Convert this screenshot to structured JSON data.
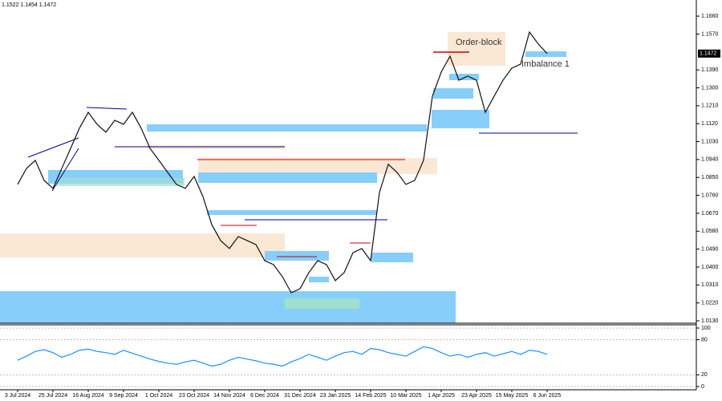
{
  "chart_data": [
    {
      "type": "line",
      "title": "1.1522 1.1454 1.1472",
      "last_price": 1.1472,
      "annotations": [
        "Order-block",
        "Imbalance 1"
      ],
      "categories": [
        "3 Jul 2024",
        null,
        null,
        null,
        "25 Jul 2024",
        null,
        null,
        null,
        "16 Aug 2024",
        null,
        null,
        null,
        "9 Sep 2024",
        null,
        null,
        null,
        "1 Oct 2024",
        null,
        null,
        null,
        "23 Oct 2024",
        null,
        null,
        null,
        "14 Nov 2024",
        null,
        null,
        null,
        "6 Dec 2024",
        null,
        null,
        null,
        "31 Dec 2024",
        null,
        null,
        null,
        "23 Jan 2025",
        null,
        null,
        null,
        "14 Feb 2025",
        null,
        null,
        null,
        "10 Mar 2025",
        null,
        null,
        null,
        "1 Apr 2025",
        null,
        null,
        null,
        "23 Apr 2025",
        null,
        null,
        null,
        "15 May 2025",
        null,
        null,
        null,
        "6 Jun 2025",
        null,
        null,
        null
      ],
      "series": [
        {
          "color": "#111111",
          "values": [
            1.0815,
            1.0895,
            1.0936,
            1.0835,
            1.0795,
            1.0895,
            1.0996,
            1.1097,
            1.1177,
            1.1117,
            1.1077,
            1.1137,
            1.1117,
            1.1177,
            1.1097,
            1.0996,
            1.0936,
            1.0875,
            1.0815,
            1.0795,
            1.0855,
            1.0754,
            1.0613,
            1.0533,
            1.0493,
            1.0553,
            1.0533,
            1.0513,
            1.0432,
            1.0412,
            1.0352,
            1.0271,
            1.0291,
            1.0372,
            1.0432,
            1.0412,
            1.0332,
            1.0372,
            1.0472,
            1.0493,
            1.0432,
            1.0775,
            1.0916,
            1.0875,
            1.0815,
            1.0835,
            1.0936,
            1.1258,
            1.1379,
            1.1459,
            1.1338,
            1.1359,
            1.1338,
            1.1177,
            1.1258,
            1.1338,
            1.1399,
            1.1419,
            1.158,
            1.152,
            1.1472,
            null,
            null,
            null
          ]
        }
      ],
      "ylim": [
        1.0118,
        1.1741
      ],
      "yticks": [
        {
          "value": 1.013,
          "label": "1.0130"
        },
        {
          "value": 1.022,
          "label": "1.0220"
        },
        {
          "value": 1.031,
          "label": "1.0310"
        },
        {
          "value": 1.04,
          "label": "1.0400"
        },
        {
          "value": 1.049,
          "label": "1.0490"
        },
        {
          "value": 1.058,
          "label": "1.0580"
        },
        {
          "value": 1.067,
          "label": "1.0670"
        },
        {
          "value": 1.076,
          "label": "1.0760"
        },
        {
          "value": 1.085,
          "label": "1.0850"
        },
        {
          "value": 1.094,
          "label": "1.0940"
        },
        {
          "value": 1.103,
          "label": "1.1030"
        },
        {
          "value": 1.112,
          "label": "1.1120"
        },
        {
          "value": 1.121,
          "label": "1.1210"
        },
        {
          "value": 1.13,
          "label": "1.1300"
        },
        {
          "value": 1.139,
          "label": "1.1390"
        },
        {
          "value": 1.157,
          "label": "1.1570"
        },
        {
          "value": 1.166,
          "label": "1.1660"
        }
      ]
    },
    {
      "type": "line",
      "series": [
        {
          "color": "#1e90ff",
          "values": [
            45,
            52,
            60,
            63,
            58,
            50,
            55,
            62,
            64,
            60,
            58,
            55,
            62,
            57,
            52,
            47,
            43,
            40,
            38,
            42,
            45,
            40,
            35,
            38,
            45,
            50,
            47,
            44,
            40,
            38,
            35,
            42,
            48,
            55,
            50,
            45,
            52,
            58,
            60,
            55,
            65,
            63,
            58,
            55,
            52,
            60,
            68,
            65,
            58,
            52,
            55,
            50,
            55,
            58,
            52,
            56,
            60,
            55,
            62,
            60,
            55,
            null,
            null,
            null
          ]
        }
      ],
      "ylim": [
        -5.5,
        105.5
      ],
      "yticks": [
        0,
        20,
        80,
        100
      ]
    }
  ]
}
